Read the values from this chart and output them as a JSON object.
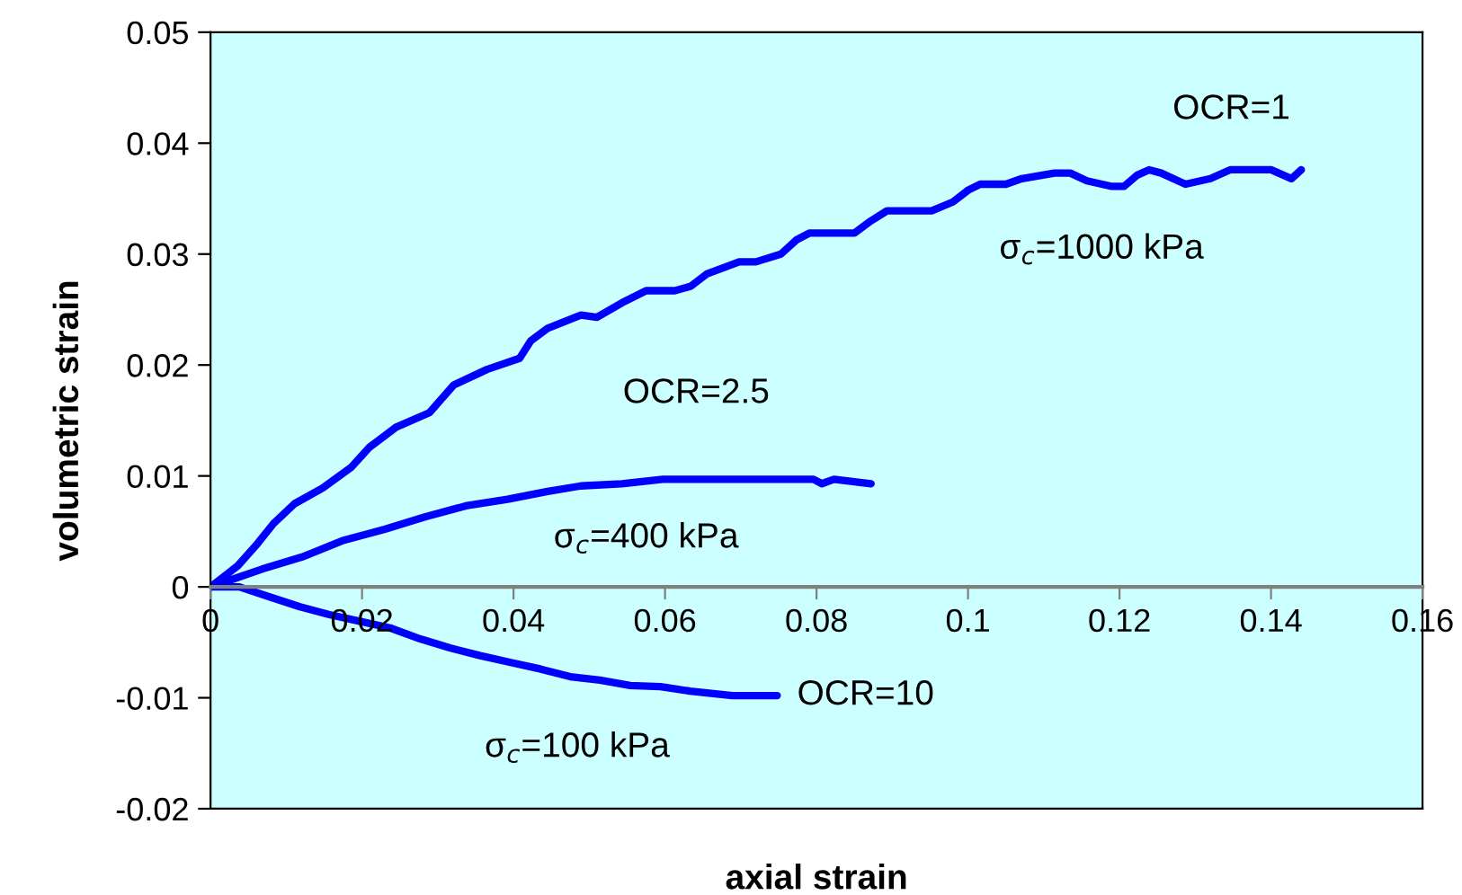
{
  "chart_data": {
    "type": "line",
    "xlabel": "axial strain",
    "ylabel": "volumetric strain",
    "xlim": [
      0,
      0.16
    ],
    "xticks": [
      0,
      0.02,
      0.04,
      0.06,
      0.08,
      0.1,
      0.12,
      0.14,
      0.16
    ],
    "ylim": [
      -0.02,
      0.05
    ],
    "yticks": [
      -0.02,
      -0.01,
      0,
      0.01,
      0.02,
      0.03,
      0.04,
      0.05
    ],
    "grid": false,
    "marker": "none",
    "line_style": "solid",
    "series": [
      {
        "color": "#0000ff",
        "x": [
          0,
          0.0036,
          0.0062,
          0.0083,
          0.0111,
          0.0148,
          0.0186,
          0.021,
          0.0245,
          0.0289,
          0.0321,
          0.0365,
          0.0408,
          0.0423,
          0.0445,
          0.0489,
          0.051,
          0.0543,
          0.0575,
          0.0613,
          0.0634,
          0.0655,
          0.0698,
          0.072,
          0.0753,
          0.0774,
          0.0791,
          0.085,
          0.0872,
          0.0893,
          0.0952,
          0.098,
          0.1001,
          0.1016,
          0.105,
          0.1071,
          0.1114,
          0.1135,
          0.1157,
          0.119,
          0.1206,
          0.1223,
          0.1239,
          0.1255,
          0.1287,
          0.132,
          0.1346,
          0.14,
          0.1427,
          0.144
        ],
        "values": [
          0,
          0.0019,
          0.0039,
          0.0057,
          0.0075,
          0.0089,
          0.0108,
          0.0126,
          0.0144,
          0.0157,
          0.0182,
          0.0196,
          0.0206,
          0.0222,
          0.0233,
          0.0245,
          0.0243,
          0.0256,
          0.0267,
          0.0267,
          0.0271,
          0.0282,
          0.0293,
          0.0293,
          0.03,
          0.0313,
          0.0319,
          0.0319,
          0.033,
          0.0339,
          0.0339,
          0.0347,
          0.0358,
          0.0363,
          0.0363,
          0.0368,
          0.0373,
          0.0373,
          0.0366,
          0.0361,
          0.0361,
          0.0371,
          0.0376,
          0.0373,
          0.0363,
          0.0368,
          0.0376,
          0.0376,
          0.0368,
          0.0376
        ]
      },
      {
        "color": "#0000ff",
        "x": [
          0,
          0.0068,
          0.0121,
          0.0176,
          0.023,
          0.0283,
          0.0337,
          0.0392,
          0.0445,
          0.0489,
          0.0543,
          0.0597,
          0.0796,
          0.0807,
          0.0823,
          0.0872
        ],
        "values": [
          0,
          0.0016,
          0.0027,
          0.0042,
          0.0052,
          0.0063,
          0.0073,
          0.0079,
          0.0086,
          0.0091,
          0.0093,
          0.0097,
          0.0097,
          0.0093,
          0.0097,
          0.0093
        ]
      },
      {
        "color": "#0000ff",
        "x": [
          0,
          0.0038,
          0.0078,
          0.0118,
          0.0157,
          0.0197,
          0.0237,
          0.0277,
          0.0316,
          0.0356,
          0.0395,
          0.0435,
          0.0475,
          0.0514,
          0.0554,
          0.0594,
          0.0633,
          0.0689,
          0.0748
        ],
        "values": [
          0,
          0,
          -0.0009,
          -0.0018,
          -0.0025,
          -0.0031,
          -0.0037,
          -0.0047,
          -0.0055,
          -0.0062,
          -0.0068,
          -0.0074,
          -0.0081,
          -0.0084,
          -0.0089,
          -0.009,
          -0.0094,
          -0.0098,
          -0.0098
        ]
      }
    ],
    "annotations": [
      "OCR=1",
      "σ$_{c}$=1000 kPa",
      "OCR=2.5",
      "σ$_{c}$=400 kPa",
      "OCR=10",
      "σ$_{c}$=100 kPa"
    ]
  }
}
